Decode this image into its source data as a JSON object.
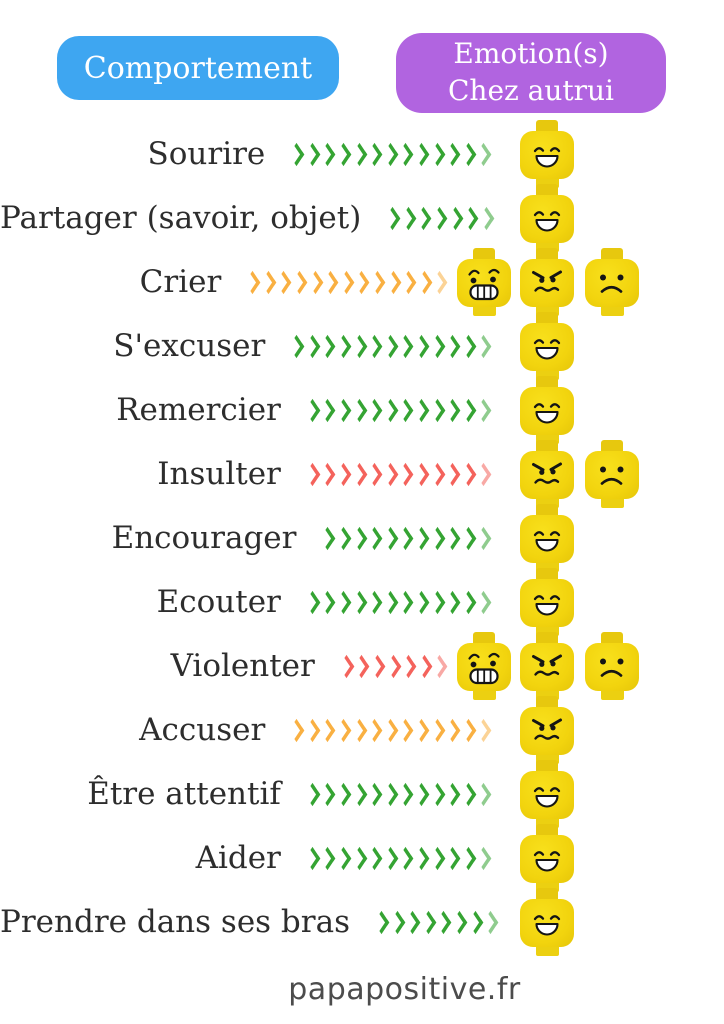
{
  "page": {
    "footer": "papapositive.fr",
    "background": "#ffffff"
  },
  "header": {
    "behavior_label": "Comportement",
    "emotion_line1": "Emotion(s)",
    "emotion_line2": "Chez autrui",
    "behavior_pill_color": "#3ea6f1",
    "emotion_pill_color": "#b164e0"
  },
  "colors": {
    "green": "#35a433",
    "orange": "#f9b042",
    "red": "#f4635c",
    "head_yellow": "#f2d40e",
    "text": "#2d2d2d"
  },
  "rows": [
    {
      "label": "Sourire",
      "arrow_color": "green",
      "arrow_count": 13,
      "faces": [
        {
          "type": "happy",
          "slot": "main"
        }
      ]
    },
    {
      "label": "Partager (savoir, objet)",
      "arrow_color": "green",
      "arrow_count": 7,
      "faces": [
        {
          "type": "happy",
          "slot": "main"
        }
      ]
    },
    {
      "label": "Crier",
      "arrow_color": "orange",
      "arrow_count": 13,
      "faces": [
        {
          "type": "scared",
          "slot": "left"
        },
        {
          "type": "angry",
          "slot": "main"
        },
        {
          "type": "sad",
          "slot": "right"
        }
      ]
    },
    {
      "label": "S'excuser",
      "arrow_color": "green",
      "arrow_count": 13,
      "faces": [
        {
          "type": "happy",
          "slot": "main"
        }
      ]
    },
    {
      "label": "Remercier",
      "arrow_color": "green",
      "arrow_count": 12,
      "faces": [
        {
          "type": "happy",
          "slot": "main"
        }
      ]
    },
    {
      "label": "Insulter",
      "arrow_color": "red",
      "arrow_count": 12,
      "faces": [
        {
          "type": "angry",
          "slot": "main"
        },
        {
          "type": "sad",
          "slot": "right"
        }
      ]
    },
    {
      "label": "Encourager",
      "arrow_color": "green",
      "arrow_count": 11,
      "faces": [
        {
          "type": "happy",
          "slot": "main"
        }
      ]
    },
    {
      "label": "Ecouter",
      "arrow_color": "green",
      "arrow_count": 12,
      "faces": [
        {
          "type": "happy",
          "slot": "main"
        }
      ]
    },
    {
      "label": "Violenter",
      "arrow_color": "red",
      "arrow_count": 7,
      "faces": [
        {
          "type": "scared",
          "slot": "left"
        },
        {
          "type": "angry",
          "slot": "main"
        },
        {
          "type": "sad",
          "slot": "right"
        }
      ]
    },
    {
      "label": "Accuser",
      "arrow_color": "orange",
      "arrow_count": 13,
      "faces": [
        {
          "type": "angry",
          "slot": "main"
        }
      ]
    },
    {
      "label": "Être attentif",
      "arrow_color": "green",
      "arrow_count": 12,
      "faces": [
        {
          "type": "happy",
          "slot": "main"
        }
      ]
    },
    {
      "label": "Aider",
      "arrow_color": "green",
      "arrow_count": 12,
      "faces": [
        {
          "type": "happy",
          "slot": "main"
        }
      ]
    },
    {
      "label": "Prendre dans ses bras",
      "arrow_color": "green",
      "arrow_count": 8,
      "faces": [
        {
          "type": "happy",
          "slot": "main"
        }
      ]
    }
  ]
}
